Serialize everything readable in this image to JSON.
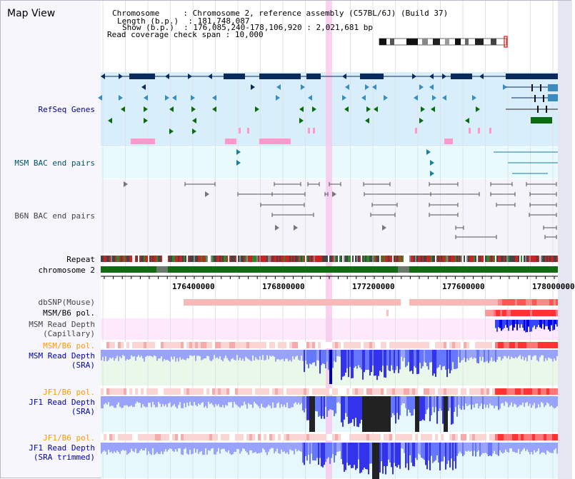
{
  "title": "Map View",
  "info": {
    "chromosome_key": "Chromosome",
    "chromosome_val": "Chromosome 2, reference assembly (C57BL/6J) (Build 37)",
    "length_key": "Length (b.p.)",
    "length_val": "181,748,087",
    "show_key": "Show (b.p.)",
    "show_val": "176,085,240-178,106,920 : 2,021,681 bp",
    "read_key": "Read coverage check span",
    "read_val": "10,000"
  },
  "tracks": {
    "refseq": "RefSeq Genes",
    "msm_bac": "MSM BAC end pairs",
    "b6n_bac": "B6N BAC end pairs",
    "repeat": "Repeat",
    "chromosome": "chromosome 2",
    "dbsnp": "dbSNP(Mouse)",
    "msm_b6_pol": "MSM/B6 pol.",
    "msm_depth_cap_1": "MSM Read Depth",
    "msm_depth_cap_2": "(Capillary)",
    "msm_b6_pol2": "MSM/B6 pol.",
    "msm_depth_sra_1": "MSM Read Depth",
    "msm_depth_sra_2": "(SRA)",
    "jf1_b6_pol": "JF1/B6 pol.",
    "jf1_depth_sra_1": "JF1 Read Depth",
    "jf1_depth_sra_2": "(SRA)",
    "jf1_b6_pol2": "JF1/B6 pol.",
    "jf1_depth_trim_1": "JF1 Read Depth",
    "jf1_depth_trim_2": "(SRA trimmed)"
  },
  "axis": {
    "ticks": [
      "176400000",
      "176800000",
      "177200000",
      "177600000",
      "178000000"
    ]
  },
  "colors": {
    "gene_dark": "#0a2a5c",
    "gene_light": "#3a8cc0",
    "gene_green": "#0b6b12",
    "pink": "#ff99cc",
    "depth_blue": "#4444ff",
    "pol_red": "#ff3333",
    "highlight": "#f8c8ec",
    "orange": "#ff9900"
  }
}
